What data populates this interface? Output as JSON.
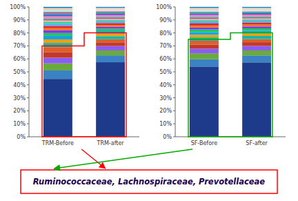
{
  "chart_data": [
    {
      "type": "bar",
      "stacked": true,
      "categories": [
        "TRM-Before",
        "TRM-after"
      ],
      "ylim": [
        0,
        1
      ],
      "yticks": [
        {
          "value": 0.0,
          "label": "0%"
        },
        {
          "value": 0.1,
          "label": "10%"
        },
        {
          "value": 0.2,
          "label": "20%"
        },
        {
          "value": 0.3,
          "label": "30%"
        },
        {
          "value": 0.4,
          "label": "40%"
        },
        {
          "value": 0.5,
          "label": "50%"
        },
        {
          "value": 0.6,
          "label": "60%"
        },
        {
          "value": 0.7,
          "label": "70%"
        },
        {
          "value": 0.8,
          "label": "80%"
        },
        {
          "value": 0.9,
          "label": "90%"
        },
        {
          "value": 1.0,
          "label": "100%"
        }
      ],
      "highlight": {
        "color": "red",
        "values": [
          0.7,
          0.8
        ]
      },
      "annotation": {
        "text": "Ruminococcaceae, Lachnospiraceae, Prevotellaceae",
        "color": "#1a0050",
        "border_color": "red"
      },
      "series": [
        {
          "color": "#1e3a8a",
          "values": [
            0.44565,
            0.57416
          ]
        },
        {
          "color": "#3b82c4",
          "values": [
            0.06522,
            0.05263
          ]
        },
        {
          "color": "#6aaa3c",
          "values": [
            0.05435,
            0.03828
          ]
        },
        {
          "color": "#8b5cf6",
          "values": [
            0.04348,
            0.03349
          ]
        },
        {
          "color": "#c0392b",
          "values": [
            0.04348,
            0.02871
          ]
        },
        {
          "color": "#e05c2a",
          "values": [
            0.03804,
            0.02392
          ]
        },
        {
          "color": "#14b8a6",
          "values": [
            0.03261,
            0.02392
          ]
        },
        {
          "color": "#f59e0b",
          "values": [
            0.02717,
            0.01914
          ]
        },
        {
          "color": "#0ea5e9",
          "values": [
            0.02717,
            0.01914
          ]
        },
        {
          "color": "#22c55e",
          "values": [
            0.02174,
            0.01914
          ]
        },
        {
          "color": "#7c3aed",
          "values": [
            0.02174,
            0.01435
          ]
        },
        {
          "color": "#f97316",
          "values": [
            0.0163,
            0.01435
          ]
        },
        {
          "color": "#dc2626",
          "values": [
            0.0163,
            0.01435
          ]
        },
        {
          "color": "#60a5fa",
          "values": [
            0.0163,
            0.01435
          ]
        },
        {
          "color": "#34d399",
          "values": [
            0.0163,
            0.00957
          ]
        },
        {
          "color": "#fca5a5",
          "values": [
            0.01087,
            0.00957
          ]
        },
        {
          "color": "#6b7280",
          "values": [
            0.01087,
            0.00957
          ]
        },
        {
          "color": "#9ca3af",
          "values": [
            0.01087,
            0.00957
          ]
        },
        {
          "color": "#f472b6",
          "values": [
            0.01087,
            0.00957
          ]
        },
        {
          "color": "#4f46e5",
          "values": [
            0.01087,
            0.00957
          ]
        },
        {
          "color": "#10b981",
          "values": [
            0.01087,
            0.00957
          ]
        },
        {
          "color": "#ec4899",
          "values": [
            0.01087,
            0.00957
          ]
        },
        {
          "color": "#a7f3d0",
          "values": [
            0.00543,
            0.00478
          ]
        },
        {
          "color": "#e5e7eb",
          "values": [
            0.00543,
            0.00478
          ]
        },
        {
          "color": "#67e8f9",
          "values": [
            0.00543,
            0.00478
          ]
        },
        {
          "color": "#fde68a",
          "values": [
            0.00543,
            0.00478
          ]
        },
        {
          "color": "#fca5a5",
          "values": [
            0.00543,
            0.00478
          ]
        },
        {
          "color": "#93c5fd",
          "values": [
            0.00543,
            0.00478
          ]
        },
        {
          "color": "#0369a1",
          "values": [
            0.00543,
            0.00478
          ]
        }
      ]
    },
    {
      "type": "bar",
      "stacked": true,
      "categories": [
        "SF-Before",
        "SF-after"
      ],
      "ylim": [
        0,
        1
      ],
      "yticks": [
        {
          "value": 0.0,
          "label": "0%"
        },
        {
          "value": 0.1,
          "label": "10%"
        },
        {
          "value": 0.2,
          "label": "20%"
        },
        {
          "value": 0.3,
          "label": "30%"
        },
        {
          "value": 0.4,
          "label": "40%"
        },
        {
          "value": 0.5,
          "label": "50%"
        },
        {
          "value": 0.6,
          "label": "60%"
        },
        {
          "value": 0.7,
          "label": "70%"
        },
        {
          "value": 0.8,
          "label": "80%"
        },
        {
          "value": 0.9,
          "label": "90%"
        },
        {
          "value": 1.0,
          "label": "100%"
        }
      ],
      "highlight": {
        "color": "#00aa00",
        "values": [
          0.75,
          0.8
        ]
      },
      "series": [
        {
          "color": "#1e3a8a",
          "values": [
            0.54082,
            0.57282
          ]
        },
        {
          "color": "#3b82c4",
          "values": [
            0.05612,
            0.0534
          ]
        },
        {
          "color": "#6aaa3c",
          "values": [
            0.04592,
            0.03883
          ]
        },
        {
          "color": "#8b5cf6",
          "values": [
            0.03571,
            0.03398
          ]
        },
        {
          "color": "#c0392b",
          "values": [
            0.03061,
            0.02913
          ]
        },
        {
          "color": "#e05c2a",
          "values": [
            0.03061,
            0.02427
          ]
        },
        {
          "color": "#14b8a6",
          "values": [
            0.02551,
            0.02427
          ]
        },
        {
          "color": "#f59e0b",
          "values": [
            0.02041,
            0.01942
          ]
        },
        {
          "color": "#0ea5e9",
          "values": [
            0.02041,
            0.01942
          ]
        },
        {
          "color": "#22c55e",
          "values": [
            0.02041,
            0.01942
          ]
        },
        {
          "color": "#7c3aed",
          "values": [
            0.01531,
            0.01456
          ]
        },
        {
          "color": "#f97316",
          "values": [
            0.01531,
            0.01456
          ]
        },
        {
          "color": "#dc2626",
          "values": [
            0.01531,
            0.01456
          ]
        },
        {
          "color": "#60a5fa",
          "values": [
            0.01531,
            0.01456
          ]
        },
        {
          "color": "#34d399",
          "values": [
            0.0102,
            0.00971
          ]
        },
        {
          "color": "#fca5a5",
          "values": [
            0.0102,
            0.00971
          ]
        },
        {
          "color": "#6b7280",
          "values": [
            0.0102,
            0.00971
          ]
        },
        {
          "color": "#9ca3af",
          "values": [
            0.0102,
            0.00971
          ]
        },
        {
          "color": "#f472b6",
          "values": [
            0.0102,
            0.00971
          ]
        },
        {
          "color": "#4f46e5",
          "values": [
            0.0102,
            0.00971
          ]
        },
        {
          "color": "#10b981",
          "values": [
            0.0102,
            0.00971
          ]
        },
        {
          "color": "#ec4899",
          "values": [
            0.0051,
            0.00485
          ]
        },
        {
          "color": "#a7f3d0",
          "values": [
            0.0051,
            0.00485
          ]
        },
        {
          "color": "#e5e7eb",
          "values": [
            0.0051,
            0.00485
          ]
        },
        {
          "color": "#67e8f9",
          "values": [
            0.0051,
            0.00485
          ]
        },
        {
          "color": "#fde68a",
          "values": [
            0.0051,
            0.00485
          ]
        },
        {
          "color": "#fca5a5",
          "values": [
            0.0051,
            0.00485
          ]
        },
        {
          "color": "#93c5fd",
          "values": [
            0.0051,
            0.00485
          ]
        },
        {
          "color": "#0369a1",
          "values": [
            0.0051,
            0.00485
          ]
        }
      ]
    }
  ]
}
